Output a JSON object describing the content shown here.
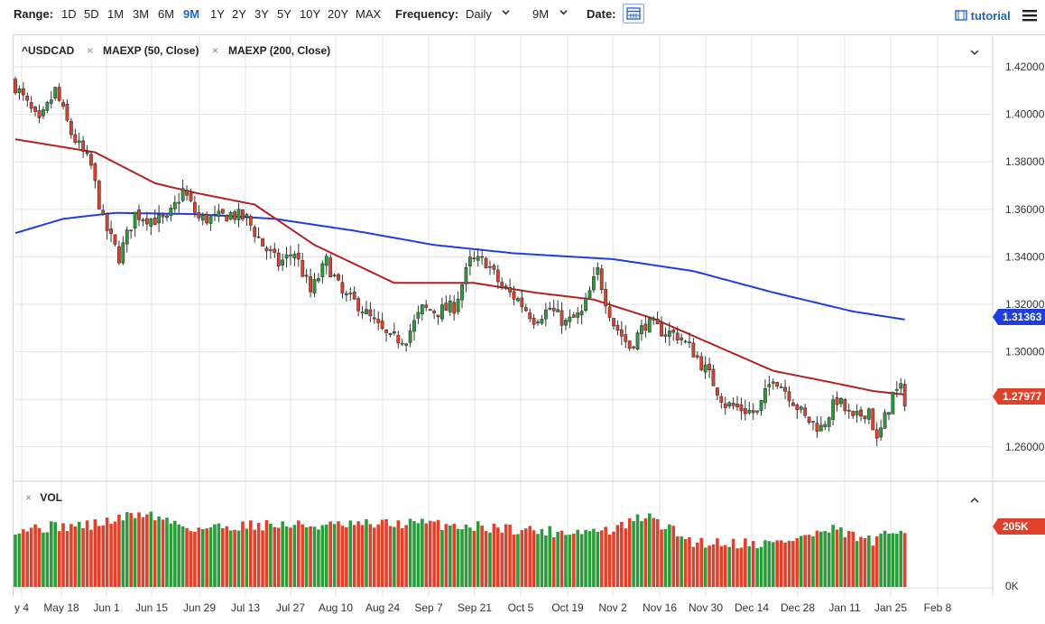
{
  "toolbar": {
    "range_label": "Range:",
    "ranges": [
      "1D",
      "5D",
      "1M",
      "3M",
      "6M",
      "9M",
      "1Y",
      "2Y",
      "3Y",
      "5Y",
      "10Y",
      "20Y",
      "MAX"
    ],
    "active_range": "9M",
    "frequency_label": "Frequency:",
    "frequency_value": "Daily",
    "period_value": "9M",
    "date_label": "Date:",
    "tutorial_label": "tutorial",
    "accent_color": "#1b66c9"
  },
  "legend": {
    "symbol": "^USDCAD",
    "ma50": "MAEXP (50, Close)",
    "ma200": "MAEXP (200, Close)",
    "close_x": "×"
  },
  "volume_panel": {
    "label": "VOL",
    "close_x": "×"
  },
  "chart_data": {
    "type": "candlestick",
    "price_axis": {
      "ticks": [
        "1.42000",
        "1.40000",
        "1.38000",
        "1.36000",
        "1.34000",
        "1.32000",
        "1.30000",
        "1.28000",
        "1.26000"
      ],
      "ylim": [
        1.2528,
        1.4244
      ]
    },
    "volume_axis": {
      "ticks": [
        "205K",
        "0K"
      ]
    },
    "x_ticks": [
      "y 4",
      "May 18",
      "Jun 1",
      "Jun 15",
      "Jun 29",
      "Jul 13",
      "Jul 27",
      "Aug 10",
      "Aug 24",
      "Sep 7",
      "Sep 21",
      "Oct 5",
      "Oct 19",
      "Nov 2",
      "Nov 16",
      "Nov 30",
      "Dec 14",
      "Dec 28",
      "Jan 11",
      "Jan 25",
      "Feb 8"
    ],
    "last_price_label": "1.27977",
    "ma200_label": "1.31363",
    "volume_label": "205K",
    "anchors": [
      {
        "n": 0,
        "c": 1.412
      },
      {
        "n": 6,
        "c": 1.396
      },
      {
        "n": 10,
        "c": 1.41
      },
      {
        "n": 14,
        "c": 1.392
      },
      {
        "n": 19,
        "c": 1.378
      },
      {
        "n": 22,
        "c": 1.355
      },
      {
        "n": 26,
        "c": 1.34
      },
      {
        "n": 30,
        "c": 1.358
      },
      {
        "n": 34,
        "c": 1.356
      },
      {
        "n": 38,
        "c": 1.355
      },
      {
        "n": 42,
        "c": 1.368
      },
      {
        "n": 46,
        "c": 1.356
      },
      {
        "n": 50,
        "c": 1.356
      },
      {
        "n": 54,
        "c": 1.358
      },
      {
        "n": 58,
        "c": 1.356
      },
      {
        "n": 62,
        "c": 1.345
      },
      {
        "n": 66,
        "c": 1.337
      },
      {
        "n": 70,
        "c": 1.342
      },
      {
        "n": 74,
        "c": 1.325
      },
      {
        "n": 78,
        "c": 1.338
      },
      {
        "n": 82,
        "c": 1.324
      },
      {
        "n": 86,
        "c": 1.32
      },
      {
        "n": 90,
        "c": 1.312
      },
      {
        "n": 94,
        "c": 1.305
      },
      {
        "n": 98,
        "c": 1.306
      },
      {
        "n": 102,
        "c": 1.318
      },
      {
        "n": 106,
        "c": 1.317
      },
      {
        "n": 110,
        "c": 1.319
      },
      {
        "n": 114,
        "c": 1.338
      },
      {
        "n": 118,
        "c": 1.338
      },
      {
        "n": 122,
        "c": 1.327
      },
      {
        "n": 126,
        "c": 1.322
      },
      {
        "n": 130,
        "c": 1.314
      },
      {
        "n": 134,
        "c": 1.318
      },
      {
        "n": 138,
        "c": 1.312
      },
      {
        "n": 142,
        "c": 1.316
      },
      {
        "n": 146,
        "c": 1.334
      },
      {
        "n": 148,
        "c": 1.322
      },
      {
        "n": 150,
        "c": 1.312
      },
      {
        "n": 154,
        "c": 1.302
      },
      {
        "n": 158,
        "c": 1.312
      },
      {
        "n": 162,
        "c": 1.309
      },
      {
        "n": 166,
        "c": 1.307
      },
      {
        "n": 170,
        "c": 1.3
      },
      {
        "n": 174,
        "c": 1.29
      },
      {
        "n": 178,
        "c": 1.278
      },
      {
        "n": 182,
        "c": 1.276
      },
      {
        "n": 186,
        "c": 1.274
      },
      {
        "n": 190,
        "c": 1.29
      },
      {
        "n": 194,
        "c": 1.282
      },
      {
        "n": 198,
        "c": 1.272
      },
      {
        "n": 202,
        "c": 1.268
      },
      {
        "n": 206,
        "c": 1.28
      },
      {
        "n": 210,
        "c": 1.271
      },
      {
        "n": 214,
        "c": 1.276
      },
      {
        "n": 216,
        "c": 1.262
      },
      {
        "n": 218,
        "c": 1.272
      },
      {
        "n": 220,
        "c": 1.282
      },
      {
        "n": 222,
        "c": 1.284
      },
      {
        "n": 223,
        "c": 1.2798
      }
    ],
    "ma50_anchors": [
      {
        "n": 0,
        "v": 1.3895
      },
      {
        "n": 20,
        "v": 1.384
      },
      {
        "n": 35,
        "v": 1.371
      },
      {
        "n": 45,
        "v": 1.367
      },
      {
        "n": 60,
        "v": 1.362
      },
      {
        "n": 75,
        "v": 1.345
      },
      {
        "n": 95,
        "v": 1.329
      },
      {
        "n": 115,
        "v": 1.329
      },
      {
        "n": 130,
        "v": 1.325
      },
      {
        "n": 145,
        "v": 1.322
      },
      {
        "n": 160,
        "v": 1.314
      },
      {
        "n": 175,
        "v": 1.303
      },
      {
        "n": 190,
        "v": 1.292
      },
      {
        "n": 205,
        "v": 1.287
      },
      {
        "n": 215,
        "v": 1.2835
      },
      {
        "n": 223,
        "v": 1.282
      }
    ],
    "ma200_anchors": [
      {
        "n": 0,
        "v": 1.35
      },
      {
        "n": 12,
        "v": 1.356
      },
      {
        "n": 25,
        "v": 1.3585
      },
      {
        "n": 45,
        "v": 1.358
      },
      {
        "n": 65,
        "v": 1.356
      },
      {
        "n": 85,
        "v": 1.351
      },
      {
        "n": 105,
        "v": 1.345
      },
      {
        "n": 125,
        "v": 1.3415
      },
      {
        "n": 150,
        "v": 1.339
      },
      {
        "n": 170,
        "v": 1.334
      },
      {
        "n": 190,
        "v": 1.325
      },
      {
        "n": 210,
        "v": 1.317
      },
      {
        "n": 223,
        "v": 1.3136
      }
    ],
    "volume_anchors_k": [
      {
        "n": 0,
        "v": 200
      },
      {
        "n": 20,
        "v": 215
      },
      {
        "n": 32,
        "v": 255
      },
      {
        "n": 45,
        "v": 200
      },
      {
        "n": 60,
        "v": 215
      },
      {
        "n": 80,
        "v": 210
      },
      {
        "n": 100,
        "v": 220
      },
      {
        "n": 120,
        "v": 205
      },
      {
        "n": 135,
        "v": 190
      },
      {
        "n": 150,
        "v": 195
      },
      {
        "n": 158,
        "v": 245
      },
      {
        "n": 170,
        "v": 155
      },
      {
        "n": 190,
        "v": 150
      },
      {
        "n": 205,
        "v": 195
      },
      {
        "n": 215,
        "v": 155
      },
      {
        "n": 223,
        "v": 205
      }
    ],
    "grid": true,
    "colors": {
      "up": "#2a9d3a",
      "down": "#e0412b",
      "ma50": "#b22222",
      "ma200": "#1f3fdc"
    }
  }
}
